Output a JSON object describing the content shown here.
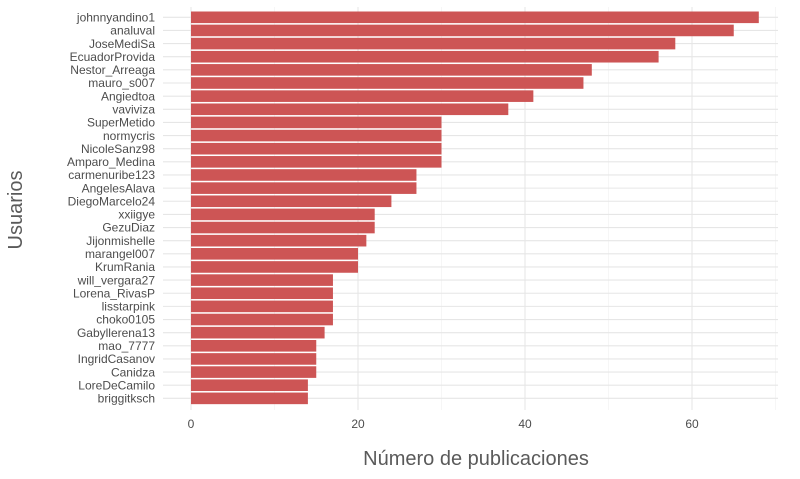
{
  "chart_data": {
    "type": "bar",
    "orientation": "horizontal",
    "xlabel": "Número de publicaciones",
    "ylabel": "Usuarios",
    "xlim": [
      0,
      72
    ],
    "xticks": [
      0,
      20,
      40,
      60
    ],
    "grid": true,
    "bar_color": "#cd5555",
    "categories": [
      "johnnyandino1",
      "analuval",
      "JoseMediSa",
      "EcuadorProvida",
      "Nestor_Arreaga",
      "mauro_s007",
      "Angiedtoa",
      "vaviviza",
      "SuperMetido",
      "normycris",
      "NicoleSanz98",
      "Amparo_Medina",
      "carmenuribe123",
      "AngelesAlava",
      "DiegoMarcelo24",
      "xxiigye",
      "GezuDiaz",
      "Jijonmishelle",
      "marangel007",
      "KrumRania",
      "will_vergara27",
      "Lorena_RivasP",
      "lisstarpink",
      "choko0105",
      "Gabyllerena13",
      "mao_7777",
      "IngridCasanov",
      "Canidza",
      "LoreDeCamilo",
      "briggitksch"
    ],
    "values": [
      68,
      65,
      58,
      56,
      48,
      47,
      41,
      38,
      30,
      30,
      30,
      30,
      27,
      27,
      24,
      22,
      22,
      21,
      20,
      20,
      17,
      17,
      17,
      17,
      16,
      15,
      15,
      15,
      14,
      14
    ]
  }
}
